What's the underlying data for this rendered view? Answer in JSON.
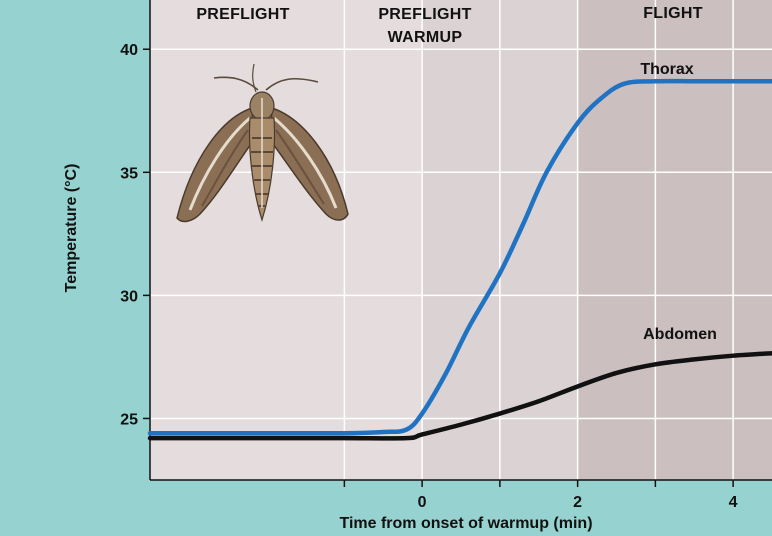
{
  "chart_data": {
    "type": "line",
    "xlabel": "Time from onset of warmup (min)",
    "ylabel": "Temperature (°C)",
    "xlim": [
      -3.5,
      4.5
    ],
    "ylim": [
      22.5,
      42
    ],
    "x_ticks": [
      -1,
      0,
      1,
      2,
      3,
      4
    ],
    "x_tick_labels": [
      "0",
      "2",
      "4"
    ],
    "x_tick_label_values": [
      0,
      2,
      4
    ],
    "y_ticks": [
      25,
      30,
      35,
      40
    ],
    "y_tick_labels": [
      "25",
      "30",
      "35",
      "40"
    ],
    "grid": true,
    "phases": [
      {
        "label": "PREFLIGHT",
        "lines": [
          "PREFLIGHT"
        ],
        "start": -3.5,
        "end": 0,
        "color": "#e4dcdd"
      },
      {
        "label": "PREFLIGHT WARMUP",
        "lines": [
          "PREFLIGHT",
          "WARMUP"
        ],
        "start": 0,
        "end": 2,
        "color": "#dbd2d3"
      },
      {
        "label": "FLIGHT",
        "lines": [
          "FLIGHT"
        ],
        "start": 2,
        "end": 4.5,
        "color": "#cbbfc0"
      }
    ],
    "series": [
      {
        "name": "Thorax",
        "color": "#1f73c2",
        "x": [
          -3.5,
          -2.0,
          -1.0,
          -0.5,
          -0.2,
          0.0,
          0.3,
          0.6,
          1.0,
          1.3,
          1.6,
          2.0,
          2.3,
          2.6,
          3.0,
          3.5,
          4.0,
          4.5
        ],
        "y": [
          24.4,
          24.4,
          24.4,
          24.45,
          24.55,
          25.2,
          26.8,
          28.7,
          30.9,
          32.9,
          35.0,
          37.0,
          38.0,
          38.6,
          38.7,
          38.7,
          38.7,
          38.7
        ]
      },
      {
        "name": "Abdomen",
        "color": "#111111",
        "x": [
          -3.5,
          -2.0,
          -1.0,
          -0.2,
          0.0,
          0.5,
          1.0,
          1.5,
          2.0,
          2.5,
          3.0,
          3.5,
          4.0,
          4.5
        ],
        "y": [
          24.2,
          24.2,
          24.2,
          24.2,
          24.35,
          24.75,
          25.2,
          25.7,
          26.3,
          26.85,
          27.2,
          27.4,
          27.55,
          27.65
        ]
      }
    ]
  },
  "decoration": {
    "image_subject": "moth-illustration"
  }
}
